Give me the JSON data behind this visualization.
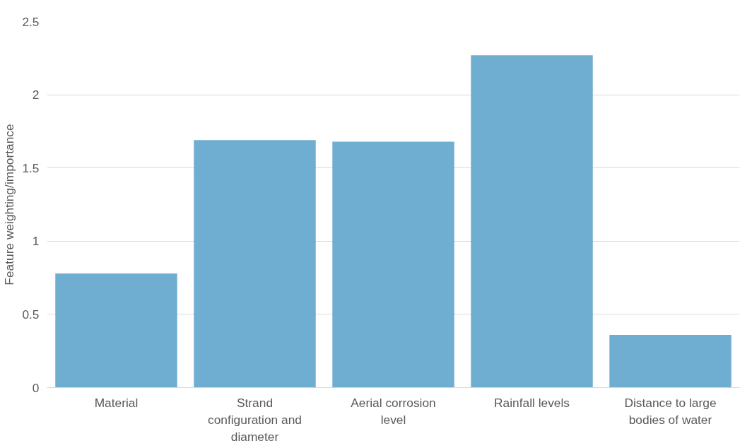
{
  "chart_data": {
    "type": "bar",
    "ylabel": "Feature weighting/importance",
    "categories": [
      "Material",
      "Strand configuration and diameter",
      "Aerial corrosion level",
      "Rainfall levels",
      "Distance to large bodies of water"
    ],
    "values": [
      0.78,
      1.69,
      1.68,
      2.27,
      0.36
    ],
    "color": "#70aed1",
    "ylim": [
      0,
      2.5
    ],
    "yticks": [
      0,
      0.5,
      1,
      1.5,
      2,
      2.5
    ],
    "grid": "y"
  }
}
